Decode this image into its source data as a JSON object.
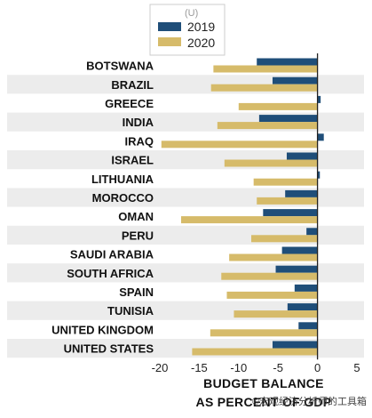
{
  "chart_data": {
    "type": "bar",
    "orientation": "horizontal",
    "categories": [
      "BOTSWANA",
      "BRAZIL",
      "GREECE",
      "INDIA",
      "IRAQ",
      "ISRAEL",
      "LITHUANIA",
      "MOROCCO",
      "OMAN",
      "PERU",
      "SAUDI ARABIA",
      "SOUTH AFRICA",
      "SPAIN",
      "TUNISIA",
      "UNITED KINGDOM",
      "UNITED STATES"
    ],
    "series": [
      {
        "name": "2019",
        "color": "#1f4e79",
        "values": [
          -7.7,
          -5.7,
          0.4,
          -7.4,
          0.8,
          -3.9,
          0.3,
          -4.1,
          -6.9,
          -1.4,
          -4.5,
          -5.3,
          -2.9,
          -3.8,
          -2.4,
          -5.7
        ]
      },
      {
        "name": "2020",
        "color": "#d6bb6a",
        "values": [
          -13.2,
          -13.5,
          -10.0,
          -12.7,
          -19.8,
          -11.8,
          -8.1,
          -7.7,
          -17.3,
          -8.4,
          -11.2,
          -12.2,
          -11.5,
          -10.6,
          -13.6,
          -15.9
        ]
      }
    ],
    "xlim": [
      -20,
      5
    ],
    "xticks": [
      -20,
      -15,
      -10,
      -5,
      0,
      5
    ],
    "xlabel": "BUDGET BALANCE",
    "xlabel_line2": "AS PERCENT OF GDP",
    "legend_unit": "(U)",
    "legend_position": "top-center",
    "row_banding": true
  },
  "watermark": "©宏观经济分析师的工具箱"
}
